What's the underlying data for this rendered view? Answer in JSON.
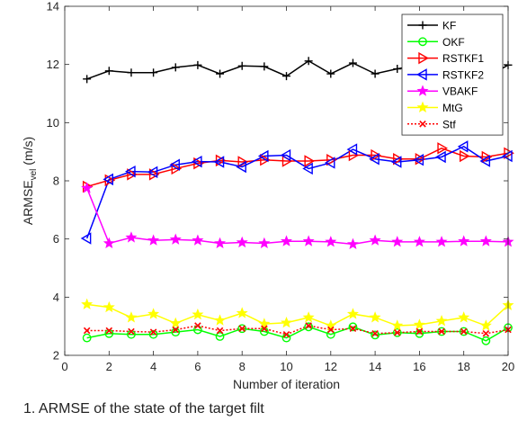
{
  "chart_data": {
    "type": "line",
    "xlabel": "Number of iteration",
    "ylabel_main": "ARMSE",
    "ylabel_sub": "vel",
    "ylabel_unit": " (m/s)",
    "xlim": [
      0,
      20
    ],
    "ylim": [
      2,
      14
    ],
    "xticks": [
      0,
      2,
      4,
      6,
      8,
      10,
      12,
      14,
      16,
      18,
      20
    ],
    "yticks": [
      2,
      4,
      6,
      8,
      10,
      12,
      14
    ],
    "grid": false,
    "legend_position": "top-right",
    "x": [
      1,
      2,
      3,
      4,
      5,
      6,
      7,
      8,
      9,
      10,
      11,
      12,
      13,
      14,
      15,
      16,
      17,
      18,
      19,
      20
    ],
    "series": [
      {
        "name": "KF",
        "color": "#000000",
        "marker": "plus",
        "dash": "solid",
        "values": [
          11.5,
          11.78,
          11.72,
          11.72,
          11.9,
          11.98,
          11.68,
          11.95,
          11.93,
          11.6,
          12.12,
          11.68,
          12.05,
          11.68,
          11.85,
          11.98,
          11.65,
          11.95,
          11.55,
          11.98
        ]
      },
      {
        "name": "OKF",
        "color": "#00ff00",
        "marker": "circle",
        "dash": "solid",
        "values": [
          2.6,
          2.75,
          2.72,
          2.72,
          2.8,
          2.88,
          2.65,
          2.92,
          2.82,
          2.6,
          2.98,
          2.72,
          2.98,
          2.7,
          2.78,
          2.75,
          2.82,
          2.82,
          2.5,
          2.95
        ]
      },
      {
        "name": "RSTKF1",
        "color": "#ff0000",
        "marker": "triangle-right",
        "dash": "solid",
        "values": [
          7.8,
          8.02,
          8.22,
          8.22,
          8.42,
          8.6,
          8.7,
          8.65,
          8.72,
          8.68,
          8.68,
          8.72,
          8.88,
          8.88,
          8.75,
          8.75,
          9.12,
          8.85,
          8.82,
          8.95
        ]
      },
      {
        "name": "RSTKF2",
        "color": "#0000ff",
        "marker": "triangle-left",
        "dash": "solid",
        "values": [
          6.02,
          8.05,
          8.32,
          8.3,
          8.55,
          8.66,
          8.65,
          8.48,
          8.85,
          8.88,
          8.42,
          8.62,
          9.08,
          8.75,
          8.65,
          8.72,
          8.82,
          9.18,
          8.68,
          8.85
        ]
      },
      {
        "name": "VBAKF",
        "color": "#ff00ff",
        "marker": "star",
        "dash": "solid",
        "values": [
          7.75,
          5.85,
          6.05,
          5.95,
          5.98,
          5.95,
          5.85,
          5.88,
          5.85,
          5.92,
          5.92,
          5.9,
          5.82,
          5.95,
          5.9,
          5.9,
          5.9,
          5.92,
          5.92,
          5.9
        ]
      },
      {
        "name": "MtG",
        "color": "#ffff00",
        "marker": "star",
        "dash": "solid",
        "values": [
          3.75,
          3.65,
          3.3,
          3.42,
          3.1,
          3.4,
          3.2,
          3.45,
          3.08,
          3.12,
          3.3,
          3.02,
          3.42,
          3.3,
          3.02,
          3.05,
          3.18,
          3.3,
          3.02,
          3.72
        ]
      },
      {
        "name": "Stf",
        "color": "#ff0000",
        "marker": "x",
        "dash": "dotted",
        "values": [
          2.85,
          2.85,
          2.82,
          2.8,
          2.88,
          3.02,
          2.85,
          2.92,
          2.92,
          2.72,
          3.02,
          2.88,
          2.92,
          2.75,
          2.78,
          2.82,
          2.82,
          2.82,
          2.75,
          2.88
        ]
      }
    ]
  },
  "caption": "1. ARMSE  of the state of the target filt"
}
